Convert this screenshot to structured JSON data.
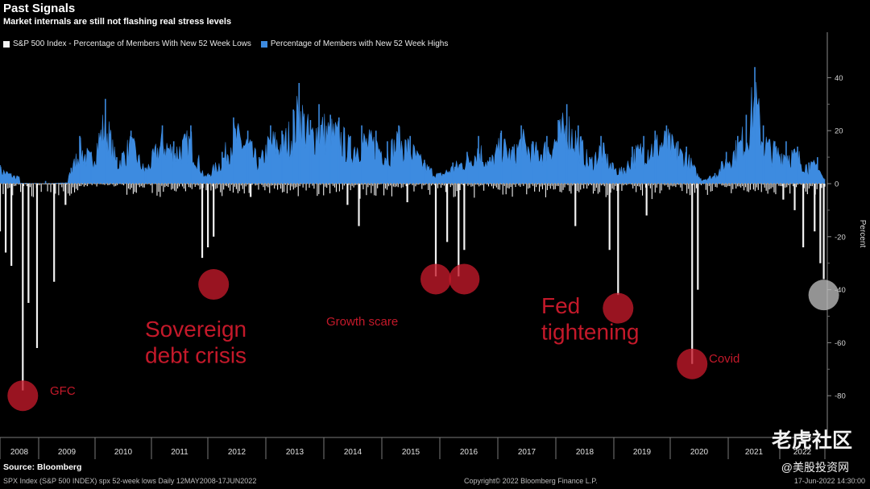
{
  "header": {
    "title": "Past Signals",
    "subtitle": "Market internals are still not flashing real stress levels"
  },
  "chart_data": {
    "type": "area",
    "xlabel": "",
    "ylabel": "Percent",
    "ylim": [
      -90,
      50
    ],
    "yticks": [
      40,
      20,
      0,
      -20,
      -40,
      -60,
      -80
    ],
    "xticks": [
      "2008",
      "2009",
      "2010",
      "2011",
      "2012",
      "2013",
      "2014",
      "2015",
      "2016",
      "2017",
      "2018",
      "2019",
      "2020",
      "2021",
      "2022"
    ],
    "legend_position": "top-left",
    "series": [
      {
        "name": "S&P 500 Index - Percentage of Members With New 52 Week Lows",
        "color": "#f2f2f2",
        "spikes": [
          {
            "x": 2008.0,
            "y": -18
          },
          {
            "x": 2008.1,
            "y": -26
          },
          {
            "x": 2008.2,
            "y": -31
          },
          {
            "x": 2008.4,
            "y": -78
          },
          {
            "x": 2008.5,
            "y": -45
          },
          {
            "x": 2008.65,
            "y": -62
          },
          {
            "x": 2008.95,
            "y": -37
          },
          {
            "x": 2009.15,
            "y": -8
          },
          {
            "x": 2011.55,
            "y": -28
          },
          {
            "x": 2011.65,
            "y": -24
          },
          {
            "x": 2011.75,
            "y": -20
          },
          {
            "x": 2012.4,
            "y": -5
          },
          {
            "x": 2014.1,
            "y": -8
          },
          {
            "x": 2014.3,
            "y": -16
          },
          {
            "x": 2015.15,
            "y": -7
          },
          {
            "x": 2015.65,
            "y": -35
          },
          {
            "x": 2015.85,
            "y": -22
          },
          {
            "x": 2016.05,
            "y": -35
          },
          {
            "x": 2016.15,
            "y": -25
          },
          {
            "x": 2018.1,
            "y": -16
          },
          {
            "x": 2018.7,
            "y": -25
          },
          {
            "x": 2018.85,
            "y": -42
          },
          {
            "x": 2019.35,
            "y": -12
          },
          {
            "x": 2020.15,
            "y": -68
          },
          {
            "x": 2020.25,
            "y": -40
          },
          {
            "x": 2021.75,
            "y": -6
          },
          {
            "x": 2021.95,
            "y": -10
          },
          {
            "x": 2022.1,
            "y": -24
          },
          {
            "x": 2022.3,
            "y": -18
          },
          {
            "x": 2022.4,
            "y": -30
          },
          {
            "x": 2022.46,
            "y": -36
          }
        ]
      },
      {
        "name": "Percentage of Members with New 52 Week Highs",
        "color": "#3d8be0",
        "peaks": [
          {
            "x": 2008.0,
            "y": 7
          },
          {
            "x": 2008.3,
            "y": 3
          },
          {
            "x": 2008.8,
            "y": 1
          },
          {
            "x": 2009.25,
            "y": 6
          },
          {
            "x": 2009.4,
            "y": 18
          },
          {
            "x": 2009.6,
            "y": 12
          },
          {
            "x": 2009.85,
            "y": 32
          },
          {
            "x": 2010.05,
            "y": 10
          },
          {
            "x": 2010.3,
            "y": 20
          },
          {
            "x": 2010.55,
            "y": 6
          },
          {
            "x": 2010.85,
            "y": 22
          },
          {
            "x": 2011.05,
            "y": 16
          },
          {
            "x": 2011.35,
            "y": 22
          },
          {
            "x": 2011.6,
            "y": 3
          },
          {
            "x": 2011.9,
            "y": 12
          },
          {
            "x": 2012.1,
            "y": 25
          },
          {
            "x": 2012.35,
            "y": 20
          },
          {
            "x": 2012.55,
            "y": 10
          },
          {
            "x": 2012.75,
            "y": 22
          },
          {
            "x": 2012.95,
            "y": 20
          },
          {
            "x": 2013.15,
            "y": 28
          },
          {
            "x": 2013.25,
            "y": 38
          },
          {
            "x": 2013.45,
            "y": 24
          },
          {
            "x": 2013.6,
            "y": 30
          },
          {
            "x": 2013.8,
            "y": 26
          },
          {
            "x": 2013.95,
            "y": 25
          },
          {
            "x": 2014.15,
            "y": 18
          },
          {
            "x": 2014.35,
            "y": 22
          },
          {
            "x": 2014.6,
            "y": 20
          },
          {
            "x": 2014.8,
            "y": 16
          },
          {
            "x": 2015.0,
            "y": 22
          },
          {
            "x": 2015.2,
            "y": 18
          },
          {
            "x": 2015.45,
            "y": 9
          },
          {
            "x": 2015.7,
            "y": 4
          },
          {
            "x": 2015.95,
            "y": 8
          },
          {
            "x": 2016.2,
            "y": 12
          },
          {
            "x": 2016.4,
            "y": 18
          },
          {
            "x": 2016.6,
            "y": 10
          },
          {
            "x": 2016.8,
            "y": 20
          },
          {
            "x": 2017.0,
            "y": 14
          },
          {
            "x": 2017.15,
            "y": 22
          },
          {
            "x": 2017.35,
            "y": 16
          },
          {
            "x": 2017.6,
            "y": 18
          },
          {
            "x": 2017.8,
            "y": 24
          },
          {
            "x": 2017.95,
            "y": 30
          },
          {
            "x": 2018.15,
            "y": 22
          },
          {
            "x": 2018.35,
            "y": 10
          },
          {
            "x": 2018.55,
            "y": 18
          },
          {
            "x": 2018.75,
            "y": 8
          },
          {
            "x": 2018.95,
            "y": 6
          },
          {
            "x": 2019.1,
            "y": 14
          },
          {
            "x": 2019.3,
            "y": 18
          },
          {
            "x": 2019.5,
            "y": 20
          },
          {
            "x": 2019.7,
            "y": 22
          },
          {
            "x": 2019.9,
            "y": 16
          },
          {
            "x": 2020.05,
            "y": 14
          },
          {
            "x": 2020.3,
            "y": 2
          },
          {
            "x": 2020.55,
            "y": 4
          },
          {
            "x": 2020.75,
            "y": 12
          },
          {
            "x": 2020.95,
            "y": 18
          },
          {
            "x": 2021.1,
            "y": 26
          },
          {
            "x": 2021.25,
            "y": 44
          },
          {
            "x": 2021.4,
            "y": 22
          },
          {
            "x": 2021.6,
            "y": 16
          },
          {
            "x": 2021.8,
            "y": 16
          },
          {
            "x": 2022.0,
            "y": 14
          },
          {
            "x": 2022.2,
            "y": 8
          },
          {
            "x": 2022.35,
            "y": 10
          },
          {
            "x": 2022.46,
            "y": 2
          }
        ]
      }
    ],
    "annotations": [
      {
        "label": "GFC",
        "x": 2008.4,
        "y": -80
      },
      {
        "label": "Sovereign debt crisis",
        "x": 2011.75,
        "y": -38
      },
      {
        "label": "Growth scare",
        "x": 2015.65,
        "y": -36
      },
      {
        "label": "",
        "x": 2016.15,
        "y": -36
      },
      {
        "label": "Fed tightening",
        "x": 2018.85,
        "y": -47
      },
      {
        "label": "Covid",
        "x": 2020.15,
        "y": -68
      },
      {
        "label": "",
        "x": 2022.46,
        "y": -42
      }
    ],
    "annotation_color": "#c4192a",
    "current_marker_color": "#bdbdbd"
  },
  "footer": {
    "source": "Source: Bloomberg",
    "left": "SPX Index (S&P 500 INDEX) spx 52-week lows  Daily 12MAY2008-17JUN2022",
    "center": "Copyright© 2022 Bloomberg Finance L.P.",
    "right": "17-Jun-2022  14:30:00"
  },
  "watermark": {
    "main": "老虎社区",
    "sub": "@美股投资网"
  }
}
